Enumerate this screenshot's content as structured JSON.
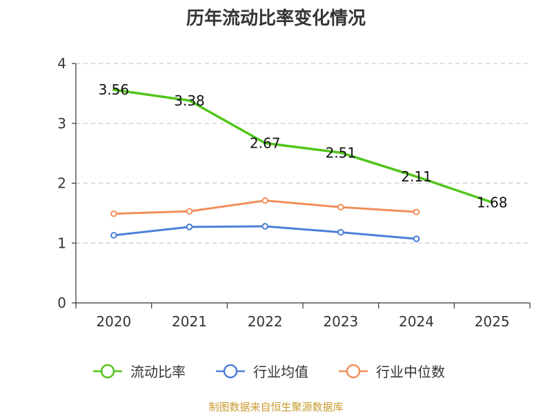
{
  "chart_data": {
    "type": "line",
    "title": "历年流动比率变化情况",
    "categories": [
      "2020",
      "2021",
      "2022",
      "2023",
      "2024",
      "2025"
    ],
    "ylim": [
      0,
      4
    ],
    "yticks": [
      "0",
      "1",
      "2",
      "3",
      "4"
    ],
    "grid": true,
    "legend_position": "bottom",
    "series": [
      {
        "name": "流动比率",
        "color": "#52c41a",
        "values": [
          3.56,
          3.38,
          2.67,
          2.51,
          2.11,
          1.68
        ],
        "labels": [
          "3.56",
          "3.38",
          "2.67",
          "2.51",
          "2.11",
          "1.68"
        ]
      },
      {
        "name": "行业均值",
        "color": "#4a7fd8",
        "values": [
          1.13,
          1.27,
          1.28,
          1.18,
          1.07,
          null
        ]
      },
      {
        "name": "行业中位数",
        "color": "#f28e5b",
        "values": [
          1.49,
          1.53,
          1.71,
          1.6,
          1.52,
          null
        ]
      }
    ]
  },
  "source": "制图数据来自恒生聚源数据库"
}
